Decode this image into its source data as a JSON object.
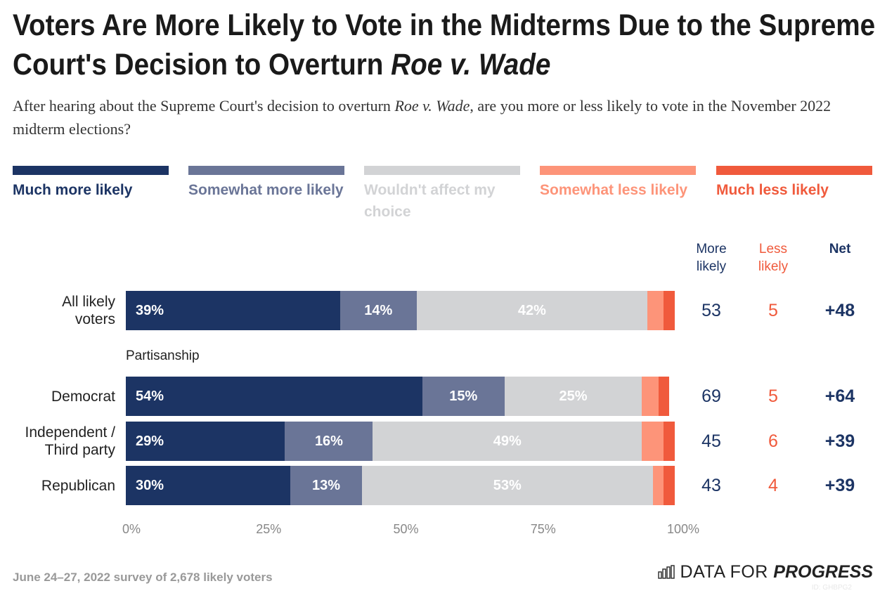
{
  "title_main": "Voters Are More Likely to Vote in the Midterms Due to the Supreme Court's Decision to Overturn ",
  "title_italic": "Roe v. Wade",
  "subtitle_pre": "After hearing about the Supreme Court's decision to overturn ",
  "subtitle_italic": "Roe v. Wade",
  "subtitle_post": ", are you more or less likely to vote in the November 2022 midterm elections?",
  "chart_data": {
    "type": "bar",
    "orientation": "horizontal-stacked",
    "legend_position": "top",
    "series": [
      {
        "name": "Much more likely",
        "color": "#1c3464"
      },
      {
        "name": "Somewhat more likely",
        "color": "#6a7597"
      },
      {
        "name": "Wouldn't affect my choice",
        "color": "#d2d3d5"
      },
      {
        "name": "Somewhat less likely",
        "color": "#fd9479"
      },
      {
        "name": "Much less likely",
        "color": "#f05a3c"
      }
    ],
    "group_label": "Partisanship",
    "rows": [
      {
        "label": "All likely voters",
        "values": [
          39,
          14,
          42,
          3,
          2
        ],
        "more": "53",
        "less": "5",
        "net": "+48"
      },
      {
        "label": "Democrat",
        "values": [
          54,
          15,
          25,
          3,
          2
        ],
        "more": "69",
        "less": "5",
        "net": "+64"
      },
      {
        "label": "Independent / Third party",
        "values": [
          29,
          16,
          49,
          4,
          2
        ],
        "more": "45",
        "less": "6",
        "net": "+39"
      },
      {
        "label": "Republican",
        "values": [
          30,
          13,
          53,
          2,
          2
        ],
        "more": "43",
        "less": "4",
        "net": "+39"
      }
    ],
    "xlim": [
      0,
      100
    ],
    "ticks": [
      "0%",
      "25%",
      "50%",
      "75%",
      "100%"
    ],
    "columns": {
      "more": "More likely",
      "less": "Less likely",
      "net": "Net"
    }
  },
  "footer": {
    "source": "June 24–27, 2022 survey of 2,678 likely voters",
    "logo_light": "DATA FOR ",
    "logo_bold": "PROGRESS",
    "id": "ID: GHBPG2"
  }
}
